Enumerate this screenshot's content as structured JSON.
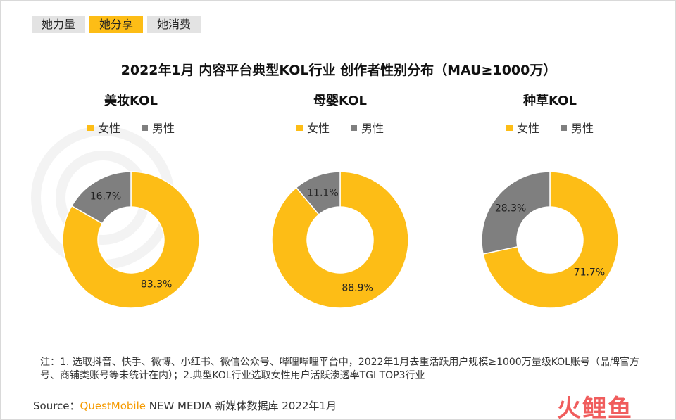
{
  "tabs": [
    {
      "label": "她力量",
      "active": false
    },
    {
      "label": "她分享",
      "active": true
    },
    {
      "label": "她消费",
      "active": false
    }
  ],
  "title": "2022年1月 内容平台典型KOL行业 创作者性别分布（MAU≥1000万）",
  "colors": {
    "female": "#fdbd16",
    "male": "#7f7f7f",
    "active_tab": "#fdbd16",
    "brand": "#f59a00"
  },
  "chart_data": [
    {
      "type": "pie",
      "donut": true,
      "title": "美妆KOL",
      "legend": [
        "女性",
        "男性"
      ],
      "legend_position": "top",
      "slices": [
        {
          "label": "女性",
          "value": 83.3,
          "display": "83.3%"
        },
        {
          "label": "男性",
          "value": 16.7,
          "display": "16.7%"
        }
      ]
    },
    {
      "type": "pie",
      "donut": true,
      "title": "母婴KOL",
      "legend": [
        "女性",
        "男性"
      ],
      "legend_position": "top",
      "slices": [
        {
          "label": "女性",
          "value": 88.9,
          "display": "88.9%"
        },
        {
          "label": "男性",
          "value": 11.1,
          "display": "11.1%"
        }
      ]
    },
    {
      "type": "pie",
      "donut": true,
      "title": "种草KOL",
      "legend": [
        "女性",
        "男性"
      ],
      "legend_position": "top",
      "slices": [
        {
          "label": "女性",
          "value": 71.7,
          "display": "71.7%"
        },
        {
          "label": "男性",
          "value": 28.3,
          "display": "28.3%"
        }
      ]
    }
  ],
  "note": "注：1. 选取抖音、快手、微博、小红书、微信公众号、哔哩哔哩平台中，2022年1月去重活跃用户规模≥1000万量级KOL账号（品牌官方号、商铺类账号等未统计在内）；2.典型KOL行业选取女性用户活跃渗透率TGI TOP3行业",
  "source": {
    "prefix": "Source：",
    "brand": "QuestMobile",
    "suffix": " NEW MEDIA 新媒体数据库 2022年1月"
  },
  "logo": "火鲤鱼"
}
